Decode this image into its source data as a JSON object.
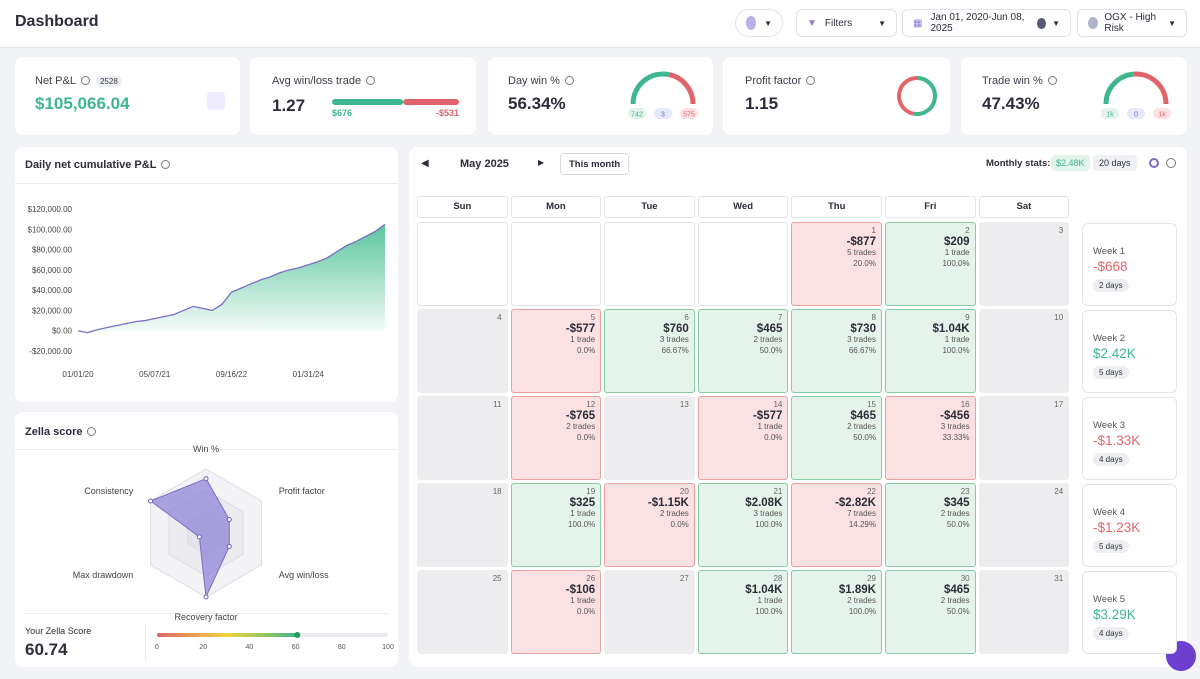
{
  "header": {
    "title": "Dashboard",
    "filters": "Filters",
    "date_range": "Jan 01, 2020-Jun 08, 2025",
    "account": "OGX - High Risk"
  },
  "kpis": {
    "net_pnl": {
      "label": "Net P&L",
      "badge": 2528,
      "value": 105066.04,
      "value_label": "$105,066.04"
    },
    "avg_win_loss": {
      "label": "Avg win/loss trade",
      "value": 1.27,
      "win": 676,
      "win_label": "$676",
      "loss": -531,
      "loss_label": "-$531"
    },
    "day_win": {
      "label": "Day win %",
      "value": 56.34,
      "value_label": "56.34%",
      "win": 742,
      "neutral": 3,
      "loss": 575
    },
    "profit_factor": {
      "label": "Profit factor",
      "value": 1.15
    },
    "trade_win": {
      "label": "Trade win %",
      "value": 47.43,
      "value_label": "47.43%",
      "win_label": "1k",
      "neutral": 0,
      "loss_label": "1k"
    }
  },
  "chart_data": [
    {
      "type": "area",
      "title": "Daily net cumulative P&L",
      "color": "#7b6fc4",
      "fill": "#3dbb8a",
      "categories": [
        "01/01/20",
        null,
        null,
        null,
        null,
        null,
        null,
        null,
        "05/07/21",
        null,
        null,
        null,
        null,
        null,
        null,
        null,
        "09/16/22",
        null,
        null,
        null,
        null,
        null,
        null,
        null,
        "01/31/24",
        null,
        null,
        null,
        null,
        null,
        null,
        null,
        null
      ],
      "values": [
        0,
        -2000,
        1000,
        3000,
        5000,
        7000,
        9000,
        10000,
        12000,
        14000,
        16000,
        20000,
        24000,
        22000,
        20000,
        26000,
        38000,
        42000,
        46000,
        50000,
        53000,
        57000,
        60000,
        62000,
        65000,
        68000,
        72000,
        78000,
        84000,
        88000,
        93000,
        98000,
        105066
      ],
      "ylim": [
        -20000,
        120000
      ],
      "yticks": [
        {
          "value": -20000,
          "label": "-$20,000.00"
        },
        {
          "value": 0,
          "label": "$0.00"
        },
        {
          "value": 20000,
          "label": "$20,000.00"
        },
        {
          "value": 40000,
          "label": "$40,000.00"
        },
        {
          "value": 60000,
          "label": "$60,000.00"
        },
        {
          "value": 80000,
          "label": "$80,000.00"
        },
        {
          "value": 100000,
          "label": "$100,000.00"
        },
        {
          "value": 120000,
          "label": "$120,000.00"
        }
      ]
    },
    {
      "type": "radar",
      "title": "Zella score",
      "color": "#8a7fd6",
      "categories": [
        "Win %",
        "Profit factor",
        "Avg win/loss",
        "Recovery factor",
        "Max drawdown",
        "Consistency"
      ],
      "values": [
        85,
        42,
        42,
        100,
        12,
        100
      ],
      "rlim": [
        0,
        100
      ],
      "score_label": "Your Zella Score",
      "score": 60.74,
      "xlim": [
        0,
        100
      ],
      "xticks": [
        0,
        20,
        40,
        60,
        80,
        100
      ]
    }
  ],
  "calendar": {
    "month": "May 2025",
    "this_month": "This month",
    "stats_label": "Monthly stats:",
    "stats_pnl": "$2.48K",
    "stats_days": "20 days",
    "weekdays": [
      "Sun",
      "Mon",
      "Tue",
      "Wed",
      "Thu",
      "Fri",
      "Sat"
    ],
    "weeks": [
      {
        "label": "Week 1",
        "pnl": "-$668",
        "days": "2 days",
        "cells": [
          null,
          null,
          null,
          null,
          {
            "day": 1,
            "pnl": "-$877",
            "trades": "5 trades",
            "rate": "20.0%"
          },
          {
            "day": 2,
            "pnl": "$209",
            "trades": "1 trade",
            "rate": "100.0%"
          },
          {
            "day": 3
          }
        ]
      },
      {
        "label": "Week 2",
        "pnl": "$2.42K",
        "days": "5 days",
        "cells": [
          {
            "day": 4
          },
          {
            "day": 5,
            "pnl": "-$577",
            "trades": "1 trade",
            "rate": "0.0%"
          },
          {
            "day": 6,
            "pnl": "$760",
            "trades": "3 trades",
            "rate": "66.67%"
          },
          {
            "day": 7,
            "pnl": "$465",
            "trades": "2 trades",
            "rate": "50.0%"
          },
          {
            "day": 8,
            "pnl": "$730",
            "trades": "3 trades",
            "rate": "66.67%"
          },
          {
            "day": 9,
            "pnl": "$1.04K",
            "trades": "1 trade",
            "rate": "100.0%"
          },
          {
            "day": 10
          }
        ]
      },
      {
        "label": "Week 3",
        "pnl": "-$1.33K",
        "days": "4 days",
        "cells": [
          {
            "day": 11
          },
          {
            "day": 12,
            "pnl": "-$765",
            "trades": "2 trades",
            "rate": "0.0%"
          },
          {
            "day": 13
          },
          {
            "day": 14,
            "pnl": "-$577",
            "trades": "1 trade",
            "rate": "0.0%"
          },
          {
            "day": 15,
            "pnl": "$465",
            "trades": "2 trades",
            "rate": "50.0%"
          },
          {
            "day": 16,
            "pnl": "-$456",
            "trades": "3 trades",
            "rate": "33.33%"
          },
          {
            "day": 17
          }
        ]
      },
      {
        "label": "Week 4",
        "pnl": "-$1.23K",
        "days": "5 days",
        "cells": [
          {
            "day": 18
          },
          {
            "day": 19,
            "pnl": "$325",
            "trades": "1 trade",
            "rate": "100.0%"
          },
          {
            "day": 20,
            "pnl": "-$1.15K",
            "trades": "2 trades",
            "rate": "0.0%"
          },
          {
            "day": 21,
            "pnl": "$2.08K",
            "trades": "3 trades",
            "rate": "100.0%"
          },
          {
            "day": 22,
            "pnl": "-$2.82K",
            "trades": "7 trades",
            "rate": "14.29%"
          },
          {
            "day": 23,
            "pnl": "$345",
            "trades": "2 trades",
            "rate": "50.0%"
          },
          {
            "day": 24
          }
        ]
      },
      {
        "label": "Week 5",
        "pnl": "$3.29K",
        "days": "4 days",
        "cells": [
          {
            "day": 25
          },
          {
            "day": 26,
            "pnl": "-$106",
            "trades": "1 trade",
            "rate": "0.0%"
          },
          {
            "day": 27
          },
          {
            "day": 28,
            "pnl": "$1.04K",
            "trades": "1 trade",
            "rate": "100.0%"
          },
          {
            "day": 29,
            "pnl": "$1.89K",
            "trades": "2 trades",
            "rate": "100.0%"
          },
          {
            "day": 30,
            "pnl": "$465",
            "trades": "2 trades",
            "rate": "50.0%"
          },
          {
            "day": 31
          }
        ]
      }
    ]
  }
}
